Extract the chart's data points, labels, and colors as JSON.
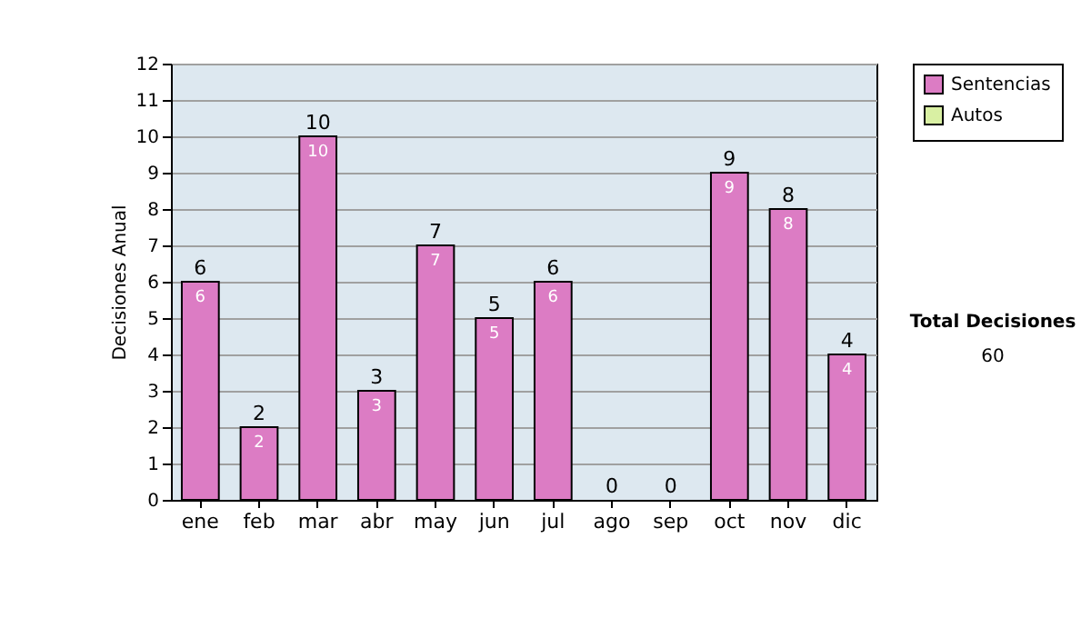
{
  "chart_data": {
    "type": "bar",
    "stacked": true,
    "ylabel": "Decisiones Anual",
    "categories": [
      "ene",
      "feb",
      "mar",
      "abr",
      "may",
      "jun",
      "jul",
      "ago",
      "sep",
      "oct",
      "nov",
      "dic"
    ],
    "series": [
      {
        "name": "Sentencias",
        "color": "#dc7cc4",
        "values": [
          6,
          2,
          10,
          3,
          7,
          5,
          6,
          0,
          0,
          9,
          8,
          4
        ],
        "value_labels": [
          "6",
          "2",
          "10",
          "3",
          "7",
          "5",
          "6",
          null,
          null,
          "9",
          "8",
          "4"
        ]
      },
      {
        "name": "Autos",
        "color": "#d9f0a3",
        "values": [
          null,
          null,
          null,
          null,
          null,
          null,
          null,
          null,
          null,
          null,
          null,
          null
        ]
      }
    ],
    "totals": [
      "6",
      "2",
      "10",
      "3",
      "7",
      "5",
      "6",
      "0",
      "0",
      "9",
      "8",
      "4"
    ],
    "ylim": [
      0,
      12
    ],
    "yticks": [
      0,
      1,
      2,
      3,
      4,
      5,
      6,
      7,
      8,
      9,
      10,
      11,
      12
    ],
    "grid": "y",
    "legend": "right",
    "annotations": [
      "Total Decisiones",
      "60"
    ]
  }
}
